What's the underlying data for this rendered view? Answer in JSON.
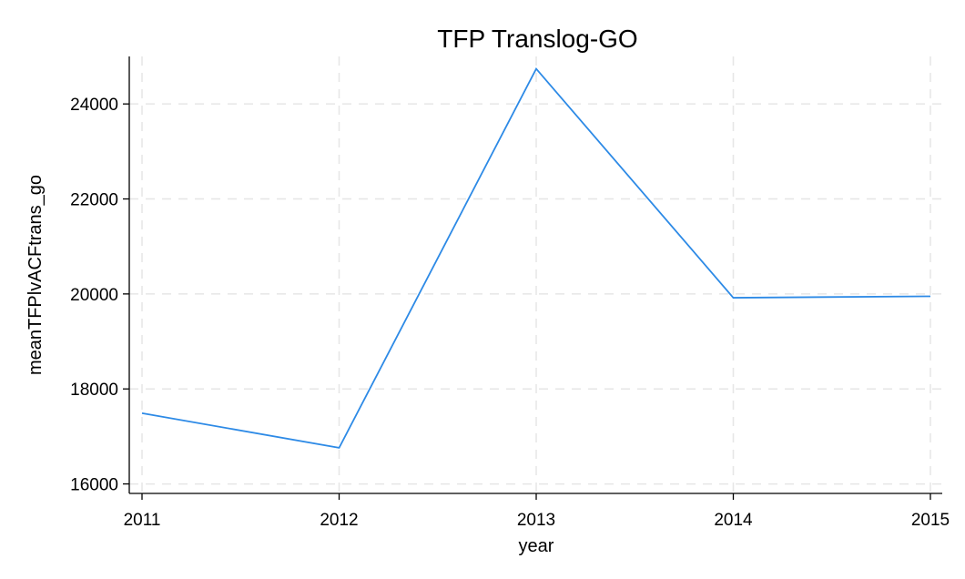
{
  "chart_data": {
    "type": "line",
    "title": "TFP Translog-GO",
    "xlabel": "year",
    "ylabel": "meanTFPlvACFtrans_go",
    "x": [
      2011,
      2012,
      2013,
      2014,
      2015
    ],
    "x_ticks": [
      "2011",
      "2012",
      "2013",
      "2014",
      "2015"
    ],
    "y_ticks": [
      "16000",
      "18000",
      "20000",
      "22000",
      "24000"
    ],
    "y_tick_values": [
      16000,
      18000,
      20000,
      22000,
      24000
    ],
    "xlim": [
      2011,
      2015
    ],
    "ylim": [
      15800,
      25000
    ],
    "grid": true,
    "series": [
      {
        "values": [
          17490,
          16760,
          24740,
          19920,
          19950
        ],
        "color": "#2d8ae6"
      }
    ]
  }
}
